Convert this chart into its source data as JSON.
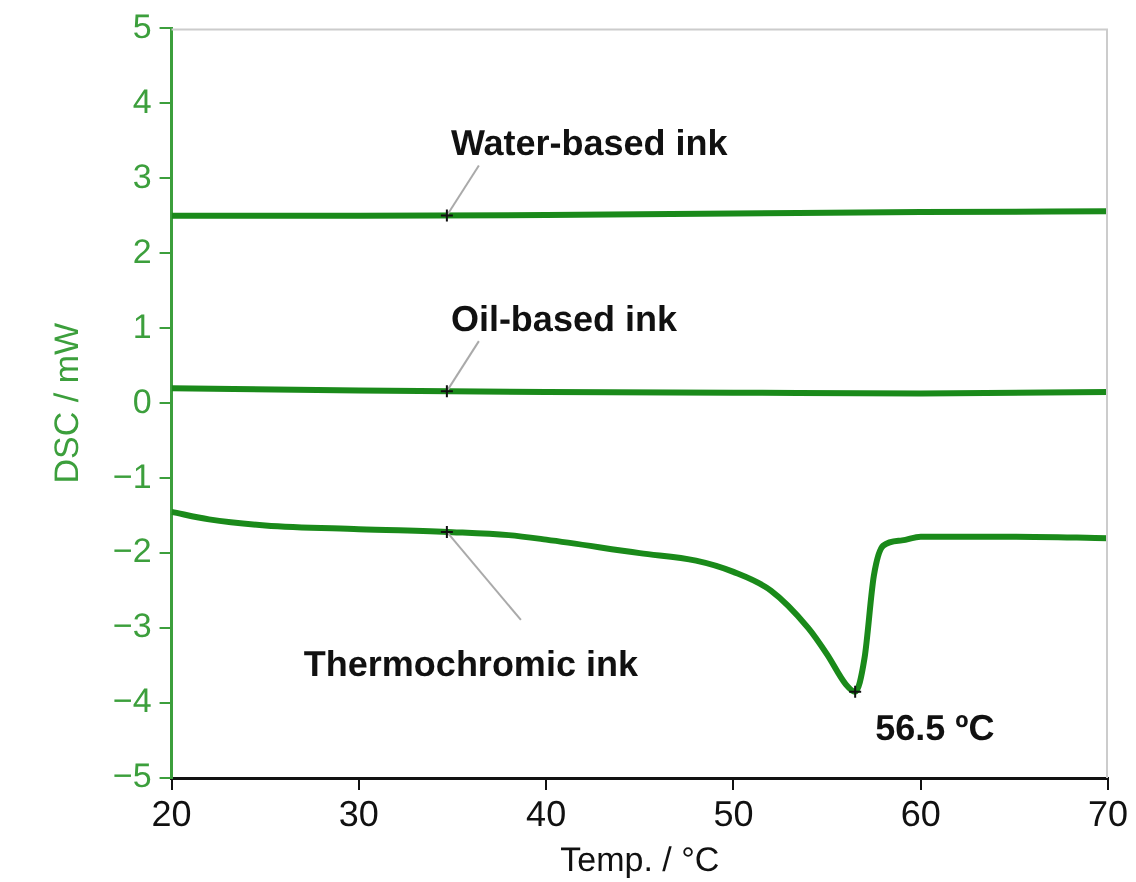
{
  "chart_data": {
    "type": "line",
    "xlabel": "Temp. / °C",
    "ylabel": "DSC / mW",
    "xlim": [
      20,
      70
    ],
    "xticks": [
      20,
      30,
      40,
      50,
      60,
      70
    ],
    "ylim": [
      -5,
      5
    ],
    "yticks": [
      -5,
      -4,
      -3,
      -2,
      -1,
      0,
      1,
      2,
      3,
      4,
      5
    ],
    "grid": false,
    "legend": false,
    "marker": "none",
    "line_style": "solid",
    "series": [
      {
        "name": "Water-based ink",
        "color": "#1a8a1a",
        "x": [
          20,
          30,
          40,
          50,
          60,
          70
        ],
        "values": [
          2.5,
          2.5,
          2.51,
          2.53,
          2.55,
          2.56
        ]
      },
      {
        "name": "Oil-based ink",
        "color": "#1a8a1a",
        "x": [
          20,
          30,
          40,
          50,
          60,
          70
        ],
        "values": [
          0.2,
          0.17,
          0.15,
          0.14,
          0.13,
          0.15
        ]
      },
      {
        "name": "Thermochromic ink",
        "color": "#1a8a1a",
        "x": [
          20,
          22,
          25,
          30,
          35,
          38,
          40,
          45,
          48,
          50,
          52,
          54,
          55,
          56,
          56.5,
          57,
          57.5,
          58,
          59,
          60,
          65,
          70
        ],
        "values": [
          -1.45,
          -1.55,
          -1.63,
          -1.68,
          -1.72,
          -1.76,
          -1.82,
          -2.0,
          -2.1,
          -2.25,
          -2.5,
          -3.0,
          -3.35,
          -3.75,
          -3.85,
          -3.4,
          -2.3,
          -1.9,
          -1.83,
          -1.78,
          -1.78,
          -1.8
        ]
      }
    ],
    "annotations": [
      {
        "text": "56.5 ºC",
        "x": 56.5,
        "y": -3.85
      }
    ]
  }
}
